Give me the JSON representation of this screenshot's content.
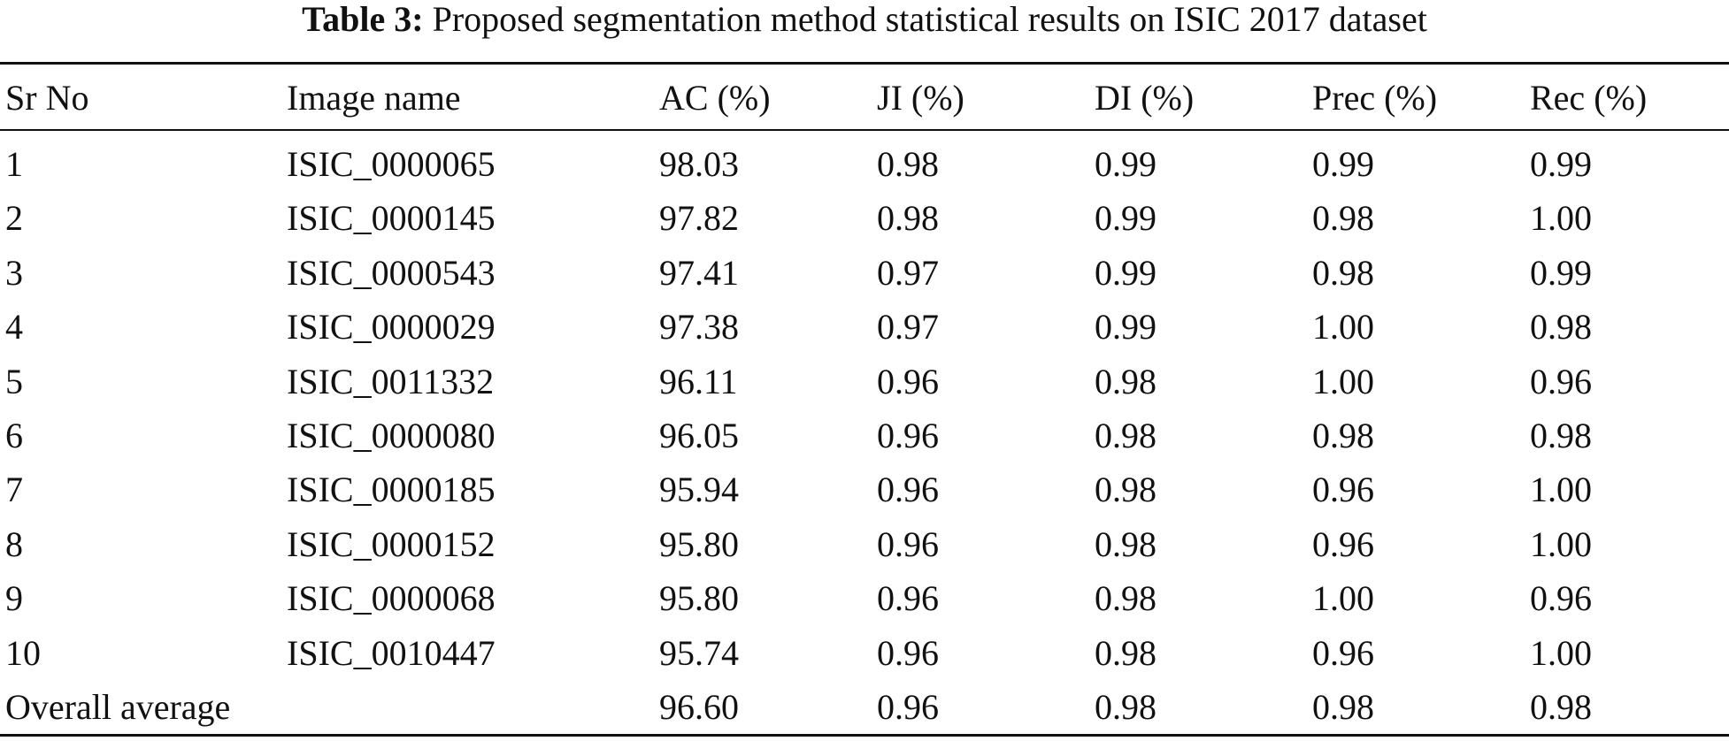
{
  "table": {
    "label": "Table 3:",
    "caption": "Proposed segmentation method statistical results on ISIC 2017 dataset",
    "columns": [
      "Sr No",
      "Image name",
      "AC (%)",
      "JI (%)",
      "DI (%)",
      "Prec (%)",
      "Rec (%)"
    ],
    "rows": [
      [
        "1",
        "ISIC_0000065",
        "98.03",
        "0.98",
        "0.99",
        "0.99",
        "0.99"
      ],
      [
        "2",
        "ISIC_0000145",
        "97.82",
        "0.98",
        "0.99",
        "0.98",
        "1.00"
      ],
      [
        "3",
        "ISIC_0000543",
        "97.41",
        "0.97",
        "0.99",
        "0.98",
        "0.99"
      ],
      [
        "4",
        "ISIC_0000029",
        "97.38",
        "0.97",
        "0.99",
        "1.00",
        "0.98"
      ],
      [
        "5",
        "ISIC_0011332",
        "96.11",
        "0.96",
        "0.98",
        "1.00",
        "0.96"
      ],
      [
        "6",
        "ISIC_0000080",
        "96.05",
        "0.96",
        "0.98",
        "0.98",
        "0.98"
      ],
      [
        "7",
        "ISIC_0000185",
        "95.94",
        "0.96",
        "0.98",
        "0.96",
        "1.00"
      ],
      [
        "8",
        "ISIC_0000152",
        "95.80",
        "0.96",
        "0.98",
        "0.96",
        "1.00"
      ],
      [
        "9",
        "ISIC_0000068",
        "95.80",
        "0.96",
        "0.98",
        "1.00",
        "0.96"
      ],
      [
        "10",
        "ISIC_0010447",
        "95.74",
        "0.96",
        "0.98",
        "0.96",
        "1.00"
      ]
    ],
    "average": {
      "label": "Overall average",
      "values": [
        "96.60",
        "0.96",
        "0.98",
        "0.98",
        "0.98"
      ]
    }
  }
}
